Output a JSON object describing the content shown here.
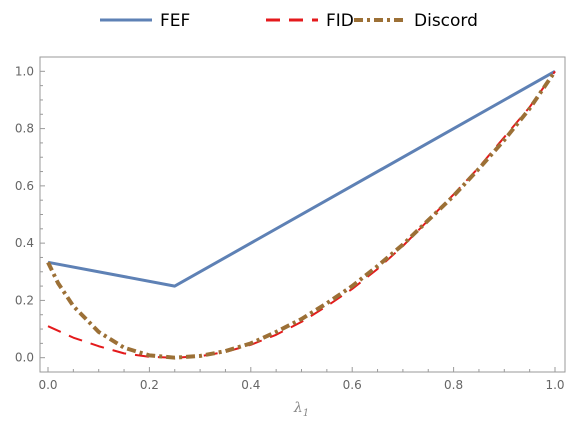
{
  "chart_data": {
    "type": "line",
    "xlabel": "λ",
    "xlabel_subscript": "1",
    "xlim": [
      0.0,
      1.0
    ],
    "ylim": [
      -0.05,
      1.05
    ],
    "x_ticks": [
      "0.0",
      "0.2",
      "0.4",
      "0.6",
      "0.8",
      "1.0"
    ],
    "y_ticks": [
      "0.0",
      "0.2",
      "0.4",
      "0.6",
      "0.8",
      "1.0"
    ],
    "legend_position": "top",
    "series": [
      {
        "name": "FEF",
        "color": "#5E81B5",
        "style": "solid",
        "points": [
          [
            0.0,
            0.333
          ],
          [
            0.25,
            0.25
          ],
          [
            1.0,
            1.0
          ]
        ]
      },
      {
        "name": "FID",
        "color": "#E41A1C",
        "style": "dashed",
        "points": [
          [
            0.0,
            0.11
          ],
          [
            0.05,
            0.07
          ],
          [
            0.1,
            0.04
          ],
          [
            0.15,
            0.015
          ],
          [
            0.2,
            0.003
          ],
          [
            0.25,
            0.0
          ],
          [
            0.3,
            0.005
          ],
          [
            0.35,
            0.02
          ],
          [
            0.4,
            0.045
          ],
          [
            0.45,
            0.08
          ],
          [
            0.5,
            0.125
          ],
          [
            0.55,
            0.18
          ],
          [
            0.6,
            0.24
          ],
          [
            0.65,
            0.31
          ],
          [
            0.7,
            0.39
          ],
          [
            0.75,
            0.48
          ],
          [
            0.8,
            0.57
          ],
          [
            0.85,
            0.665
          ],
          [
            0.9,
            0.77
          ],
          [
            0.95,
            0.875
          ],
          [
            1.0,
            1.0
          ]
        ]
      },
      {
        "name": "Discord",
        "color": "#9C7036",
        "style": "dashdot",
        "points": [
          [
            0.0,
            0.333
          ],
          [
            0.02,
            0.26
          ],
          [
            0.05,
            0.18
          ],
          [
            0.1,
            0.09
          ],
          [
            0.15,
            0.035
          ],
          [
            0.2,
            0.008
          ],
          [
            0.25,
            0.0
          ],
          [
            0.3,
            0.006
          ],
          [
            0.35,
            0.023
          ],
          [
            0.4,
            0.05
          ],
          [
            0.45,
            0.09
          ],
          [
            0.5,
            0.135
          ],
          [
            0.55,
            0.19
          ],
          [
            0.6,
            0.25
          ],
          [
            0.65,
            0.32
          ],
          [
            0.7,
            0.395
          ],
          [
            0.75,
            0.48
          ],
          [
            0.8,
            0.565
          ],
          [
            0.85,
            0.66
          ],
          [
            0.9,
            0.76
          ],
          [
            0.95,
            0.87
          ],
          [
            1.0,
            1.0
          ]
        ]
      }
    ]
  }
}
